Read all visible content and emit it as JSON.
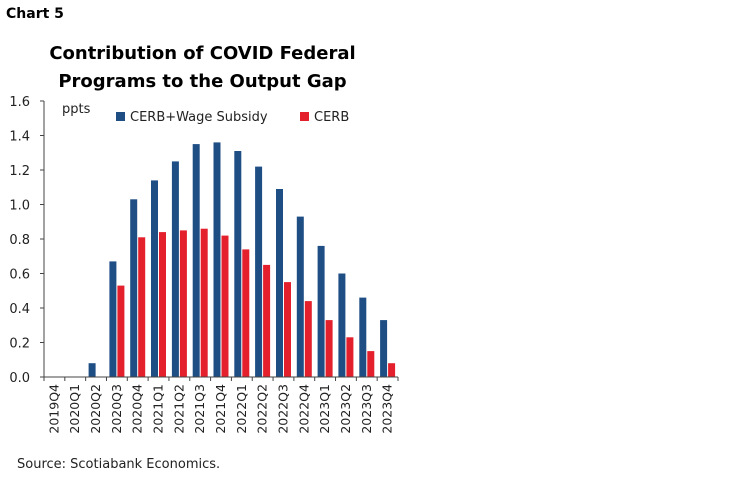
{
  "header": {
    "chart_label": "Chart 5",
    "title_line1": "Contribution of COVID Federal",
    "title_line2": "Programs to the Output Gap"
  },
  "footer": {
    "source": "Source: Scotiabank Economics."
  },
  "colors": {
    "series1": "#1f4e85",
    "series2": "#e3202b",
    "axis": "#444444"
  },
  "chart_data": {
    "type": "bar",
    "title": "Contribution of COVID Federal Programs to the Output Gap",
    "ylabel": "ppts",
    "xlabel": "",
    "ylim": [
      0,
      1.6
    ],
    "yticks": [
      "0.0",
      "0.2",
      "0.4",
      "0.6",
      "0.8",
      "1.0",
      "1.2",
      "1.4",
      "1.6"
    ],
    "grid": false,
    "legend": "top",
    "categories": [
      "2019Q4",
      "2020Q1",
      "2020Q2",
      "2020Q3",
      "2020Q4",
      "2021Q1",
      "2021Q2",
      "2021Q3",
      "2021Q4",
      "2022Q1",
      "2022Q2",
      "2022Q3",
      "2022Q4",
      "2023Q1",
      "2023Q2",
      "2023Q3",
      "2023Q4"
    ],
    "series": [
      {
        "name": "CERB+Wage Subsidy",
        "values": [
          0,
          0,
          0.08,
          0.67,
          1.03,
          1.14,
          1.25,
          1.35,
          1.36,
          1.31,
          1.22,
          1.09,
          0.93,
          0.76,
          0.6,
          0.46,
          0.33
        ]
      },
      {
        "name": "CERB",
        "values": [
          0,
          0,
          0,
          0.53,
          0.81,
          0.84,
          0.85,
          0.86,
          0.82,
          0.74,
          0.65,
          0.55,
          0.44,
          0.33,
          0.23,
          0.15,
          0.08
        ]
      }
    ],
    "source": "Source: Scotiabank Economics."
  }
}
